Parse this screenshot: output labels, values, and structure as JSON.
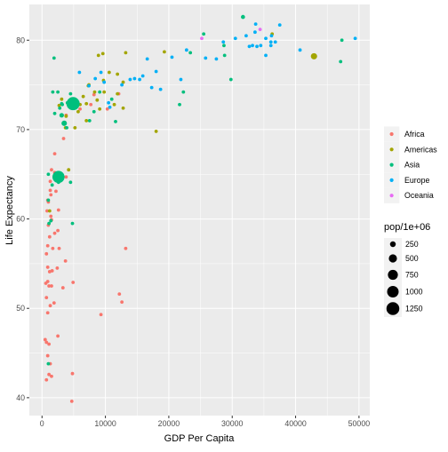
{
  "chart_data": {
    "type": "scatter",
    "title": "",
    "xlabel": "GDP Per Capita",
    "ylabel": "Life Expectancy",
    "xlim": [
      -2000,
      51700
    ],
    "ylim": [
      38,
      84
    ],
    "xticks": [
      0,
      10000,
      20000,
      30000,
      40000,
      50000
    ],
    "yticks": [
      40,
      50,
      60,
      70,
      80
    ],
    "grid": true,
    "background": "#ebebeb",
    "color_legend": {
      "title": "",
      "entries": [
        {
          "name": "Africa",
          "color": "#F8766D"
        },
        {
          "name": "Americas",
          "color": "#A3A500"
        },
        {
          "name": "Asia",
          "color": "#00BF7D"
        },
        {
          "name": "Europe",
          "color": "#00B0F6"
        },
        {
          "name": "Oceania",
          "color": "#E76BF3"
        }
      ]
    },
    "size_legend": {
      "title": "pop/1e+06",
      "values": [
        250,
        500,
        750,
        1000,
        1250
      ]
    },
    "series": [
      {
        "name": "Africa",
        "points": [
          [
            500,
            46.5,
            10
          ],
          [
            700,
            46.2,
            20
          ],
          [
            1100,
            46.0,
            10
          ],
          [
            2500,
            46.9,
            25
          ],
          [
            900,
            44.7,
            10
          ],
          [
            1300,
            43.8,
            8
          ],
          [
            1100,
            42.6,
            12
          ],
          [
            1500,
            42.4,
            9
          ],
          [
            700,
            42.0,
            8
          ],
          [
            4800,
            42.7,
            6
          ],
          [
            4700,
            39.6,
            3
          ],
          [
            900,
            49.5,
            12
          ],
          [
            1900,
            50.6,
            7
          ],
          [
            1300,
            50.3,
            10
          ],
          [
            700,
            51.2,
            8
          ],
          [
            1100,
            52.5,
            15
          ],
          [
            600,
            52.8,
            30
          ],
          [
            900,
            53.0,
            15
          ],
          [
            1500,
            52.5,
            12
          ],
          [
            3300,
            52.3,
            10
          ],
          [
            4900,
            52.9,
            2
          ],
          [
            9300,
            49.3,
            2
          ],
          [
            1200,
            54.1,
            11
          ],
          [
            900,
            54.6,
            8
          ],
          [
            1600,
            54.2,
            15
          ],
          [
            2400,
            54.5,
            14
          ],
          [
            3700,
            55.3,
            10
          ],
          [
            2700,
            56.7,
            10
          ],
          [
            900,
            57.0,
            8
          ],
          [
            1200,
            58.0,
            12
          ],
          [
            2000,
            58.4,
            10
          ],
          [
            1000,
            59.3,
            8
          ],
          [
            1500,
            59.9,
            20
          ],
          [
            800,
            60.9,
            14
          ],
          [
            1400,
            62.7,
            12
          ],
          [
            1300,
            63.2,
            10
          ],
          [
            700,
            56.1,
            7
          ],
          [
            2500,
            58.7,
            10
          ],
          [
            1700,
            56.7,
            12
          ],
          [
            12200,
            51.6,
            1
          ],
          [
            12600,
            50.7,
            2
          ],
          [
            13200,
            56.7,
            1
          ],
          [
            2600,
            61.0,
            22
          ],
          [
            1400,
            60.3,
            8
          ],
          [
            1000,
            61.9,
            9
          ],
          [
            3800,
            64.7,
            8
          ],
          [
            1500,
            65.5,
            6
          ],
          [
            2000,
            65.2,
            6
          ],
          [
            1300,
            64.2,
            7
          ],
          [
            2200,
            63.1,
            7
          ],
          [
            900,
            62.1,
            8
          ],
          [
            2000,
            67.3,
            10
          ],
          [
            3400,
            69.0,
            6
          ],
          [
            3800,
            71.6,
            35
          ],
          [
            6000,
            72.3,
            8
          ],
          [
            7700,
            72.8,
            6
          ],
          [
            10300,
            72.3,
            6
          ],
          [
            8200,
            73.9,
            3
          ],
          [
            12100,
            74.0,
            2
          ],
          [
            3600,
            70.8,
            33
          ]
        ]
      },
      {
        "name": "Americas",
        "points": [
          [
            5700,
            72.0,
            6
          ],
          [
            6000,
            72.8,
            28
          ],
          [
            7000,
            72.9,
            4
          ],
          [
            7400,
            75.0,
            5
          ],
          [
            9100,
            72.3,
            35
          ],
          [
            11400,
            72.8,
            40
          ],
          [
            12800,
            72.4,
            5
          ],
          [
            10600,
            76.4,
            9
          ],
          [
            9700,
            75.5,
            1
          ],
          [
            8900,
            78.3,
            4
          ],
          [
            9600,
            78.5,
            11
          ],
          [
            12800,
            75.3,
            1
          ],
          [
            11900,
            76.2,
            40
          ],
          [
            11900,
            74.0,
            8
          ],
          [
            13200,
            78.6,
            4
          ],
          [
            8300,
            74.2,
            8
          ],
          [
            7300,
            74.9,
            1
          ],
          [
            3700,
            70.2,
            10
          ],
          [
            5200,
            70.2,
            8
          ],
          [
            1200,
            60.9,
            9
          ],
          [
            18000,
            69.8,
            2
          ],
          [
            19300,
            78.7,
            4
          ],
          [
            4200,
            65.5,
            5
          ],
          [
            3800,
            71.5,
            3
          ],
          [
            36300,
            80.7,
            33
          ],
          [
            42900,
            78.2,
            301
          ],
          [
            7000,
            71.0,
            3
          ],
          [
            9800,
            74.2,
            10
          ],
          [
            6500,
            73.7,
            3
          ],
          [
            8700,
            73.3,
            8
          ],
          [
            2700,
            72.7,
            5
          ],
          [
            4100,
            72.9,
            10
          ],
          [
            3100,
            73.4,
            6
          ]
        ]
      },
      {
        "name": "Asia",
        "points": [
          [
            1900,
            78.0,
            1
          ],
          [
            2500,
            74.2,
            60
          ],
          [
            3200,
            72.8,
            80
          ],
          [
            2800,
            72.4,
            80
          ],
          [
            4900,
            72.9,
            1319
          ],
          [
            2600,
            64.7,
            1110
          ],
          [
            3500,
            70.7,
            224
          ],
          [
            3100,
            71.6,
            160
          ],
          [
            4500,
            74.0,
            24
          ],
          [
            1700,
            74.2,
            10
          ],
          [
            3900,
            70.2,
            80
          ],
          [
            2000,
            71.8,
            30
          ],
          [
            1000,
            62.1,
            40
          ],
          [
            1100,
            59.5,
            40
          ],
          [
            4500,
            64.1,
            1
          ],
          [
            1400,
            59.8,
            28
          ],
          [
            1000,
            65.0,
            28
          ],
          [
            1600,
            63.8,
            65
          ],
          [
            2600,
            64.1,
            25
          ],
          [
            7500,
            71.0,
            69
          ],
          [
            11600,
            70.9,
            85
          ],
          [
            8200,
            72.0,
            20
          ],
          [
            9100,
            74.2,
            40
          ],
          [
            11000,
            73.4,
            20
          ],
          [
            21700,
            72.8,
            27
          ],
          [
            23400,
            78.6,
            22
          ],
          [
            28700,
            79.4,
            6
          ],
          [
            28800,
            78.3,
            49
          ],
          [
            31700,
            82.6,
            127
          ],
          [
            25500,
            80.7,
            7
          ],
          [
            29800,
            75.6,
            3
          ],
          [
            47300,
            80.0,
            5
          ],
          [
            47100,
            77.6,
            3
          ],
          [
            22300,
            74.2,
            1
          ],
          [
            4800,
            59.5,
            6
          ],
          [
            1000,
            43.8,
            32
          ],
          [
            3100,
            72.9,
            18
          ],
          [
            4000,
            73.0,
            5
          ]
        ]
      },
      {
        "name": "Europe",
        "points": [
          [
            5900,
            76.4,
            3
          ],
          [
            7400,
            74.9,
            10
          ],
          [
            8400,
            75.7,
            5
          ],
          [
            9300,
            76.4,
            2
          ],
          [
            10500,
            73.0,
            7
          ],
          [
            10700,
            72.5,
            10
          ],
          [
            12600,
            75.0,
            38
          ],
          [
            13900,
            75.6,
            10
          ],
          [
            15400,
            75.6,
            12
          ],
          [
            14600,
            75.7,
            2
          ],
          [
            17300,
            74.7,
            5
          ],
          [
            18700,
            74.5,
            4
          ],
          [
            20500,
            78.1,
            40
          ],
          [
            21900,
            75.6,
            2
          ],
          [
            22800,
            78.9,
            20
          ],
          [
            27500,
            77.9,
            2
          ],
          [
            28600,
            79.8,
            10
          ],
          [
            30500,
            80.2,
            40
          ],
          [
            32200,
            80.5,
            60
          ],
          [
            33200,
            79.4,
            82
          ],
          [
            32700,
            79.3,
            60
          ],
          [
            33900,
            79.3,
            10
          ],
          [
            35300,
            80.2,
            16
          ],
          [
            36100,
            79.4,
            8
          ],
          [
            36800,
            79.8,
            8
          ],
          [
            37500,
            81.7,
            7
          ],
          [
            36100,
            79.8,
            5
          ],
          [
            40700,
            78.9,
            5
          ],
          [
            35300,
            78.3,
            4
          ],
          [
            33700,
            81.8,
            1
          ],
          [
            49400,
            80.2,
            5
          ],
          [
            34500,
            79.4,
            3
          ],
          [
            25800,
            78.0,
            10
          ],
          [
            33600,
            80.9,
            5
          ],
          [
            9800,
            75.3,
            8
          ],
          [
            15900,
            76.0,
            5
          ],
          [
            18000,
            76.5,
            10
          ],
          [
            16600,
            77.9,
            2
          ],
          [
            36200,
            80.5,
            8
          ]
        ]
      },
      {
        "name": "Oceania",
        "points": [
          [
            34400,
            81.2,
            20
          ],
          [
            25200,
            80.2,
            4
          ]
        ]
      }
    ]
  }
}
